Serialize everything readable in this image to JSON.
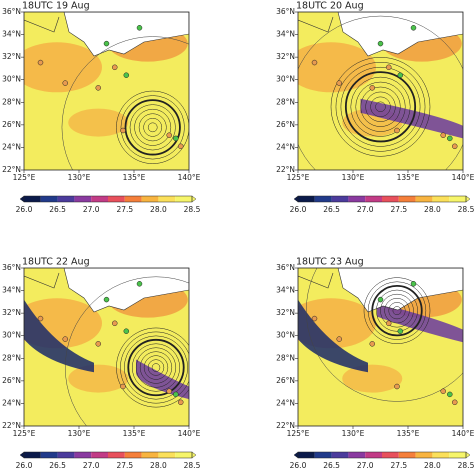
{
  "panels": [
    {
      "title": "18UTC 19 Aug"
    },
    {
      "title": "18UTC 20 Aug"
    },
    {
      "title": "18UTC 22 Aug"
    },
    {
      "title": "18UTC 23 Aug"
    }
  ],
  "lon_ticks": [
    "125°E",
    "130°E",
    "135°E",
    "140°E"
  ],
  "lat_ticks": [
    "22°N",
    "24°N",
    "26°N",
    "28°N",
    "30°N",
    "32°N",
    "34°N",
    "36°N"
  ],
  "colorbar_ticks": [
    "26.0",
    "26.5",
    "27.0",
    "27.5",
    "28.0",
    "28.5"
  ]
}
